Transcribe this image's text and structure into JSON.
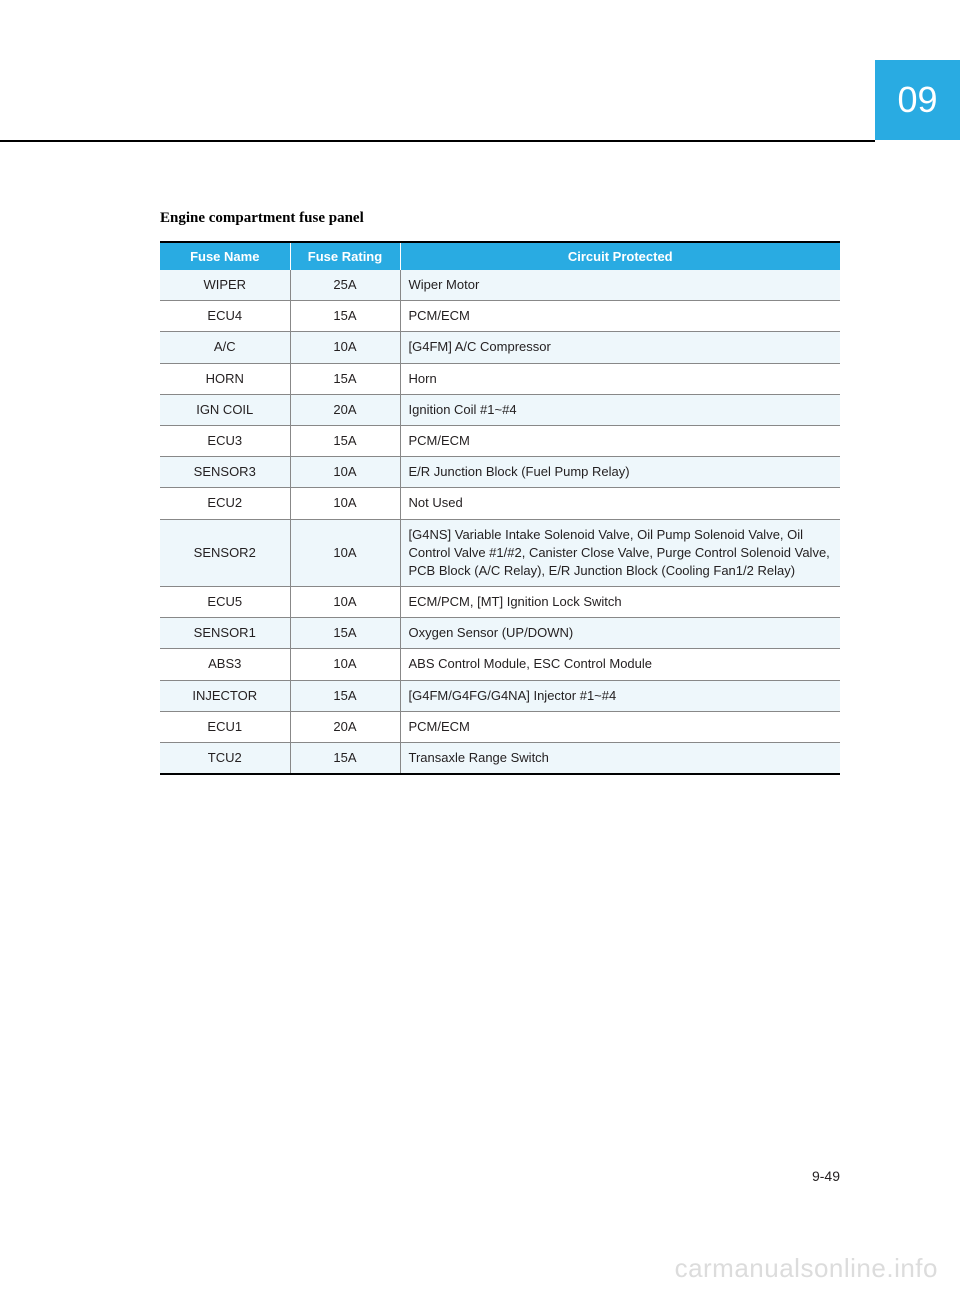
{
  "chapter": "09",
  "section_title": "Engine compartment fuse panel",
  "table": {
    "columns": [
      "Fuse Name",
      "Fuse Rating",
      "Circuit Protected"
    ],
    "header_bg": "#29abe2",
    "header_text_color": "#ffffff",
    "row_alt_bg": "#eef7fb",
    "border_color": "#888888",
    "outer_border_color": "#000000",
    "rows": [
      {
        "name": "WIPER",
        "rating": "25A",
        "circuit": "Wiper Motor"
      },
      {
        "name": "ECU4",
        "rating": "15A",
        "circuit": "PCM/ECM"
      },
      {
        "name": "A/C",
        "rating": "10A",
        "circuit": "[G4FM] A/C Compressor"
      },
      {
        "name": "HORN",
        "rating": "15A",
        "circuit": "Horn"
      },
      {
        "name": "IGN COIL",
        "rating": "20A",
        "circuit": "Ignition Coil #1~#4"
      },
      {
        "name": "ECU3",
        "rating": "15A",
        "circuit": "PCM/ECM"
      },
      {
        "name": "SENSOR3",
        "rating": "10A",
        "circuit": "E/R Junction Block (Fuel Pump Relay)"
      },
      {
        "name": "ECU2",
        "rating": "10A",
        "circuit": "Not Used"
      },
      {
        "name": "SENSOR2",
        "rating": "10A",
        "circuit": "[G4NS] Variable Intake Solenoid Valve, Oil Pump Solenoid Valve, Oil Control Valve #1/#2, Canister Close Valve, Purge Control Solenoid Valve,\nPCB Block (A/C Relay), E/R Junction Block (Cooling Fan1/2 Relay)"
      },
      {
        "name": "ECU5",
        "rating": "10A",
        "circuit": "ECM/PCM, [MT] Ignition Lock Switch"
      },
      {
        "name": "SENSOR1",
        "rating": "15A",
        "circuit": "Oxygen Sensor (UP/DOWN)"
      },
      {
        "name": "ABS3",
        "rating": "10A",
        "circuit": "ABS Control Module, ESC Control Module"
      },
      {
        "name": "INJECTOR",
        "rating": "15A",
        "circuit": "[G4FM/G4FG/G4NA] Injector #1~#4"
      },
      {
        "name": "ECU1",
        "rating": "20A",
        "circuit": "PCM/ECM"
      },
      {
        "name": "TCU2",
        "rating": "15A",
        "circuit": "Transaxle Range Switch"
      }
    ]
  },
  "page_number": "9-49",
  "watermark": "carmanualsonline.info"
}
